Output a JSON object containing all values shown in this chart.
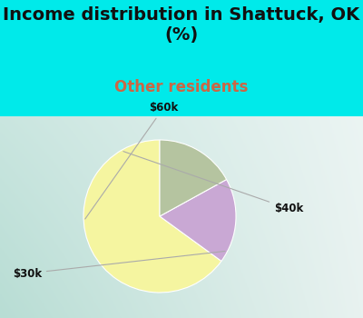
{
  "title": "Income distribution in Shattuck, OK\n(%)",
  "subtitle": "Other residents",
  "title_fontsize": 14,
  "subtitle_fontsize": 12,
  "title_color": "#111111",
  "subtitle_color": "#cc6644",
  "slices": [
    {
      "label": "$30k",
      "value": 65,
      "color": "#f5f5a0"
    },
    {
      "label": "$60k",
      "value": 18,
      "color": "#c9a8d4"
    },
    {
      "label": "$40k",
      "value": 17,
      "color": "#b5c4a0"
    }
  ],
  "label_fontsize": 8.5,
  "label_color": "#111111",
  "bg_color": "#00eaea",
  "chart_bg_left": "#b8ddd4",
  "chart_bg_right": "#e8f2f0",
  "start_angle": 90,
  "label_positions": {
    "$30k": [
      -1.55,
      -0.75
    ],
    "$60k": [
      0.05,
      1.42
    ],
    "$40k": [
      1.5,
      0.1
    ]
  }
}
